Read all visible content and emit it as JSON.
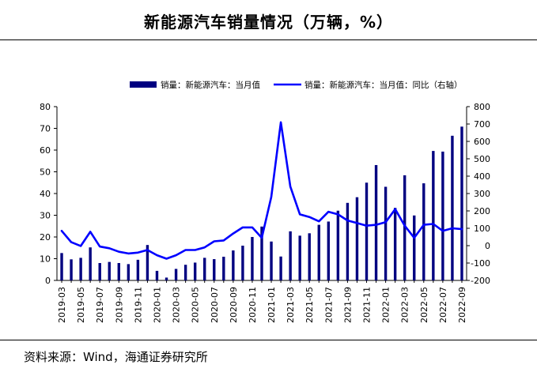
{
  "header": {
    "title": "新能源汽车销量情况（万辆，%）"
  },
  "footer": {
    "source": "资料来源：Wind，海通证券研究所"
  },
  "chart_data": {
    "type": "bar",
    "title": "新能源汽车销量情况（万辆，%）",
    "legend_position": "top",
    "colors": {
      "bar": "#000080",
      "line": "#0000ff"
    },
    "left_axis": {
      "range": [
        0,
        80
      ],
      "ticks": [
        0,
        10,
        20,
        30,
        40,
        50,
        60,
        70,
        80
      ]
    },
    "right_axis": {
      "range": [
        -200,
        800
      ],
      "ticks": [
        -200,
        -100,
        0,
        100,
        200,
        300,
        400,
        500,
        600,
        700,
        800
      ]
    },
    "x_tick_labels": [
      "2019-03",
      "2019-05",
      "2019-07",
      "2019-09",
      "2019-11",
      "2020-01",
      "2020-03",
      "2020-05",
      "2020-07",
      "2020-09",
      "2020-11",
      "2021-01",
      "2021-03",
      "2021-05",
      "2021-07",
      "2021-09",
      "2021-11",
      "2022-01",
      "2022-03",
      "2022-05",
      "2022-07",
      "2022-09"
    ],
    "categories": [
      "2019-03",
      "2019-04",
      "2019-05",
      "2019-06",
      "2019-07",
      "2019-08",
      "2019-09",
      "2019-10",
      "2019-11",
      "2019-12",
      "2020-01",
      "2020-02",
      "2020-03",
      "2020-04",
      "2020-05",
      "2020-06",
      "2020-07",
      "2020-08",
      "2020-09",
      "2020-10",
      "2020-11",
      "2020-12",
      "2021-01",
      "2021-02",
      "2021-03",
      "2021-04",
      "2021-05",
      "2021-06",
      "2021-07",
      "2021-08",
      "2021-09",
      "2021-10",
      "2021-11",
      "2021-12",
      "2022-01",
      "2022-02",
      "2022-03",
      "2022-04",
      "2022-05",
      "2022-06",
      "2022-07",
      "2022-08",
      "2022-09"
    ],
    "series": [
      {
        "name": "销量：新能源汽车：当月值",
        "type": "bar",
        "axis": "left",
        "values": [
          12.6,
          9.7,
          10.4,
          15.2,
          8.0,
          8.5,
          8.0,
          7.5,
          9.5,
          16.3,
          4.4,
          1.3,
          5.3,
          7.2,
          8.2,
          10.4,
          9.8,
          10.9,
          13.8,
          16.0,
          20.0,
          24.8,
          17.9,
          11.0,
          22.6,
          20.6,
          21.7,
          25.6,
          27.1,
          32.1,
          35.7,
          38.3,
          45.0,
          53.1,
          43.1,
          33.4,
          48.4,
          29.9,
          44.7,
          59.6,
          59.3,
          66.6,
          70.8
        ]
      },
      {
        "name": "销量：新能源汽车：当月值：同比（右轴）",
        "type": "line",
        "axis": "right",
        "values": [
          85,
          20,
          -2,
          80,
          -5,
          -15,
          -35,
          -45,
          -40,
          -25,
          -55,
          -75,
          -55,
          -25,
          -25,
          -10,
          25,
          30,
          70,
          105,
          105,
          45,
          280,
          710,
          340,
          180,
          165,
          140,
          195,
          180,
          145,
          130,
          115,
          120,
          135,
          210,
          115,
          45,
          120,
          125,
          85,
          100,
          95
        ]
      }
    ]
  }
}
